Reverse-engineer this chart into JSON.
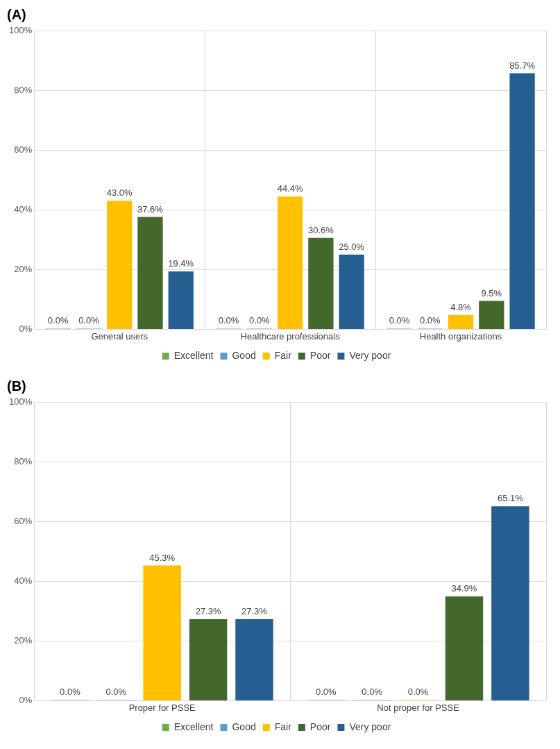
{
  "chart_data": [
    {
      "type": "bar",
      "title": "(A)",
      "categories": [
        "General users",
        "Healthcare professionals",
        "Health organizations"
      ],
      "ylim": [
        0,
        100
      ],
      "yticks": [
        {
          "value": 0,
          "label": "0%"
        },
        {
          "value": 20,
          "label": "20%"
        },
        {
          "value": 40,
          "label": "40%"
        },
        {
          "value": 60,
          "label": "60%"
        },
        {
          "value": 80,
          "label": "80%"
        },
        {
          "value": 100,
          "label": "100%"
        }
      ],
      "grid": true,
      "legend": "bottom",
      "series": [
        {
          "name": "Excellent",
          "color": "#70ad47",
          "values": [
            0,
            0,
            0
          ],
          "value_labels": [
            "0.0%",
            "0.0%",
            "0.0%"
          ]
        },
        {
          "name": "Good",
          "color": "#5b9bd5",
          "values": [
            0,
            0,
            0
          ],
          "value_labels": [
            "0.0%",
            "0.0%",
            "0.0%"
          ]
        },
        {
          "name": "Fair",
          "color": "#ffc000",
          "values": [
            43.0,
            44.4,
            4.8
          ],
          "value_labels": [
            "43.0%",
            "44.4%",
            "4.8%"
          ]
        },
        {
          "name": "Poor",
          "color": "#43682b",
          "values": [
            37.6,
            30.6,
            9.5
          ],
          "value_labels": [
            "37.6%",
            "30.6%",
            "9.5%"
          ]
        },
        {
          "name": "Very poor",
          "color": "#255e91",
          "values": [
            19.4,
            25.0,
            85.7
          ],
          "value_labels": [
            "19.4%",
            "25.0%",
            "85.7%"
          ]
        }
      ]
    },
    {
      "type": "bar",
      "title": "(B)",
      "categories": [
        "Proper for PSSE",
        "Not proper for PSSE"
      ],
      "ylim": [
        0,
        100
      ],
      "yticks": [
        {
          "value": 0,
          "label": "0%"
        },
        {
          "value": 20,
          "label": "20%"
        },
        {
          "value": 40,
          "label": "40%"
        },
        {
          "value": 60,
          "label": "60%"
        },
        {
          "value": 80,
          "label": "80%"
        },
        {
          "value": 100,
          "label": "100%"
        }
      ],
      "grid": true,
      "legend": "bottom",
      "series": [
        {
          "name": "Excellent",
          "color": "#70ad47",
          "values": [
            0,
            0
          ],
          "value_labels": [
            "0.0%",
            "0.0%"
          ]
        },
        {
          "name": "Good",
          "color": "#5b9bd5",
          "values": [
            0,
            0
          ],
          "value_labels": [
            "0.0%",
            "0.0%"
          ]
        },
        {
          "name": "Fair",
          "color": "#ffc000",
          "values": [
            45.3,
            0
          ],
          "value_labels": [
            "45.3%",
            "0.0%"
          ]
        },
        {
          "name": "Poor",
          "color": "#43682b",
          "values": [
            27.3,
            34.9
          ],
          "value_labels": [
            "27.3%",
            "34.9%"
          ]
        },
        {
          "name": "Very poor",
          "color": "#255e91",
          "values": [
            27.3,
            65.1
          ],
          "value_labels": [
            "27.3%",
            "65.1%"
          ]
        }
      ]
    }
  ]
}
